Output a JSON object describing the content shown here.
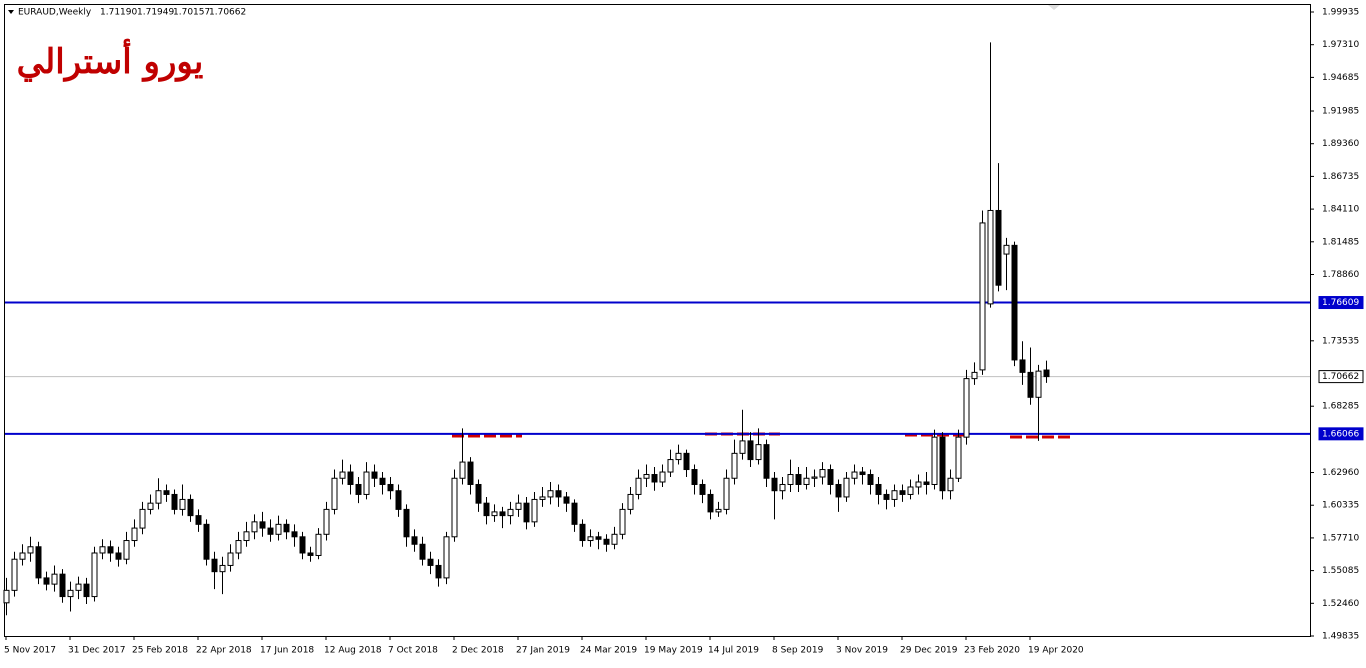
{
  "chart_data": {
    "type": "candlestick",
    "symbol": "EURAUD,Weekly",
    "header_values": [
      "1.71190",
      "1.71949",
      "1.70157",
      "1.70662"
    ],
    "annotation": "يورو أسترالي",
    "categories": [
      "5 Nov 2017",
      null,
      null,
      null,
      null,
      null,
      null,
      null,
      "31 Dec 2017",
      null,
      null,
      null,
      null,
      null,
      null,
      null,
      "25 Feb 2018",
      null,
      null,
      null,
      null,
      null,
      null,
      null,
      "22 Apr 2018",
      null,
      null,
      null,
      null,
      null,
      null,
      null,
      "17 Jun 2018",
      null,
      null,
      null,
      null,
      null,
      null,
      null,
      "12 Aug 2018",
      null,
      null,
      null,
      null,
      null,
      null,
      null,
      "7 Oct 2018",
      null,
      null,
      null,
      null,
      null,
      null,
      null,
      "2 Dec 2018",
      null,
      null,
      null,
      null,
      null,
      null,
      null,
      "27 Jan 2019",
      null,
      null,
      null,
      null,
      null,
      null,
      null,
      "24 Mar 2019",
      null,
      null,
      null,
      null,
      null,
      null,
      null,
      "19 May 2019",
      null,
      null,
      null,
      null,
      null,
      null,
      null,
      "14 Jul 2019",
      null,
      null,
      null,
      null,
      null,
      null,
      null,
      "8 Sep 2019",
      null,
      null,
      null,
      null,
      null,
      null,
      null,
      "3 Nov 2019",
      null,
      null,
      null,
      null,
      null,
      null,
      null,
      "29 Dec 2019",
      null,
      null,
      null,
      null,
      null,
      null,
      null,
      "23 Feb 2020",
      null,
      null,
      null,
      null,
      null,
      null,
      null,
      "19 Apr 2020",
      null,
      null
    ],
    "candles": [
      [
        1.525,
        1.545,
        1.515,
        1.535
      ],
      [
        1.535,
        1.566,
        1.53,
        1.56
      ],
      [
        1.56,
        1.572,
        1.555,
        1.565
      ],
      [
        1.565,
        1.578,
        1.558,
        1.57
      ],
      [
        1.57,
        1.574,
        1.54,
        1.545
      ],
      [
        1.545,
        1.55,
        1.535,
        1.54
      ],
      [
        1.54,
        1.555,
        1.534,
        1.548
      ],
      [
        1.548,
        1.552,
        1.525,
        1.53
      ],
      [
        1.53,
        1.542,
        1.518,
        1.535
      ],
      [
        1.535,
        1.546,
        1.528,
        1.54
      ],
      [
        1.54,
        1.545,
        1.524,
        1.53
      ],
      [
        1.53,
        1.57,
        1.526,
        1.565
      ],
      [
        1.565,
        1.576,
        1.56,
        1.57
      ],
      [
        1.57,
        1.575,
        1.558,
        1.565
      ],
      [
        1.565,
        1.57,
        1.554,
        1.56
      ],
      [
        1.56,
        1.582,
        1.556,
        1.575
      ],
      [
        1.575,
        1.592,
        1.57,
        1.585
      ],
      [
        1.585,
        1.606,
        1.58,
        1.6
      ],
      [
        1.6,
        1.612,
        1.596,
        1.605
      ],
      [
        1.605,
        1.625,
        1.6,
        1.615
      ],
      [
        1.615,
        1.62,
        1.606,
        1.612
      ],
      [
        1.612,
        1.616,
        1.596,
        1.6
      ],
      [
        1.6,
        1.62,
        1.595,
        1.608
      ],
      [
        1.608,
        1.612,
        1.59,
        1.595
      ],
      [
        1.595,
        1.6,
        1.582,
        1.588
      ],
      [
        1.588,
        1.592,
        1.555,
        1.56
      ],
      [
        1.56,
        1.566,
        1.536,
        1.55
      ],
      [
        1.55,
        1.562,
        1.532,
        1.555
      ],
      [
        1.555,
        1.572,
        1.55,
        1.565
      ],
      [
        1.565,
        1.582,
        1.56,
        1.575
      ],
      [
        1.575,
        1.59,
        1.57,
        1.582
      ],
      [
        1.582,
        1.596,
        1.576,
        1.59
      ],
      [
        1.59,
        1.598,
        1.578,
        1.585
      ],
      [
        1.585,
        1.592,
        1.574,
        1.58
      ],
      [
        1.58,
        1.595,
        1.575,
        1.588
      ],
      [
        1.588,
        1.592,
        1.576,
        1.582
      ],
      [
        1.582,
        1.588,
        1.57,
        1.578
      ],
      [
        1.578,
        1.582,
        1.56,
        1.565
      ],
      [
        1.565,
        1.57,
        1.558,
        1.563
      ],
      [
        1.563,
        1.585,
        1.56,
        1.58
      ],
      [
        1.58,
        1.606,
        1.575,
        1.6
      ],
      [
        1.6,
        1.632,
        1.596,
        1.625
      ],
      [
        1.625,
        1.64,
        1.62,
        1.63
      ],
      [
        1.63,
        1.636,
        1.612,
        1.62
      ],
      [
        1.62,
        1.626,
        1.605,
        1.612
      ],
      [
        1.612,
        1.638,
        1.608,
        1.63
      ],
      [
        1.63,
        1.636,
        1.618,
        1.625
      ],
      [
        1.625,
        1.63,
        1.612,
        1.62
      ],
      [
        1.62,
        1.626,
        1.608,
        1.615
      ],
      [
        1.615,
        1.62,
        1.594,
        1.6
      ],
      [
        1.6,
        1.604,
        1.57,
        1.578
      ],
      [
        1.578,
        1.584,
        1.566,
        1.572
      ],
      [
        1.572,
        1.578,
        1.555,
        1.56
      ],
      [
        1.56,
        1.566,
        1.548,
        1.555
      ],
      [
        1.555,
        1.56,
        1.538,
        1.545
      ],
      [
        1.545,
        1.582,
        1.54,
        1.578
      ],
      [
        1.578,
        1.632,
        1.574,
        1.625
      ],
      [
        1.625,
        1.665,
        1.62,
        1.638
      ],
      [
        1.638,
        1.642,
        1.612,
        1.62
      ],
      [
        1.62,
        1.624,
        1.598,
        1.605
      ],
      [
        1.605,
        1.61,
        1.588,
        1.595
      ],
      [
        1.595,
        1.604,
        1.59,
        1.598
      ],
      [
        1.598,
        1.602,
        1.585,
        1.595
      ],
      [
        1.595,
        1.606,
        1.588,
        1.6
      ],
      [
        1.6,
        1.612,
        1.594,
        1.605
      ],
      [
        1.605,
        1.61,
        1.584,
        1.59
      ],
      [
        1.59,
        1.614,
        1.586,
        1.608
      ],
      [
        1.608,
        1.618,
        1.602,
        1.61
      ],
      [
        1.61,
        1.622,
        1.604,
        1.615
      ],
      [
        1.615,
        1.62,
        1.602,
        1.61
      ],
      [
        1.61,
        1.614,
        1.598,
        1.605
      ],
      [
        1.605,
        1.608,
        1.582,
        1.588
      ],
      [
        1.588,
        1.592,
        1.57,
        1.575
      ],
      [
        1.575,
        1.584,
        1.57,
        1.578
      ],
      [
        1.578,
        1.582,
        1.568,
        1.576
      ],
      [
        1.576,
        1.58,
        1.566,
        1.572
      ],
      [
        1.572,
        1.586,
        1.568,
        1.58
      ],
      [
        1.58,
        1.605,
        1.576,
        1.6
      ],
      [
        1.6,
        1.618,
        1.596,
        1.612
      ],
      [
        1.612,
        1.632,
        1.608,
        1.625
      ],
      [
        1.625,
        1.636,
        1.618,
        1.628
      ],
      [
        1.628,
        1.634,
        1.615,
        1.622
      ],
      [
        1.622,
        1.636,
        1.618,
        1.63
      ],
      [
        1.63,
        1.648,
        1.626,
        1.64
      ],
      [
        1.64,
        1.652,
        1.636,
        1.645
      ],
      [
        1.645,
        1.648,
        1.626,
        1.632
      ],
      [
        1.632,
        1.636,
        1.612,
        1.62
      ],
      [
        1.62,
        1.624,
        1.605,
        1.612
      ],
      [
        1.612,
        1.616,
        1.592,
        1.598
      ],
      [
        1.598,
        1.606,
        1.594,
        1.6
      ],
      [
        1.6,
        1.632,
        1.596,
        1.625
      ],
      [
        1.625,
        1.656,
        1.62,
        1.645
      ],
      [
        1.645,
        1.68,
        1.64,
        1.655
      ],
      [
        1.655,
        1.662,
        1.634,
        1.64
      ],
      [
        1.64,
        1.665,
        1.636,
        1.652
      ],
      [
        1.652,
        1.656,
        1.618,
        1.625
      ],
      [
        1.625,
        1.63,
        1.592,
        1.615
      ],
      [
        1.615,
        1.626,
        1.608,
        1.62
      ],
      [
        1.62,
        1.64,
        1.614,
        1.628
      ],
      [
        1.628,
        1.634,
        1.614,
        1.62
      ],
      [
        1.62,
        1.634,
        1.616,
        1.625
      ],
      [
        1.625,
        1.632,
        1.618,
        1.626
      ],
      [
        1.626,
        1.638,
        1.62,
        1.632
      ],
      [
        1.632,
        1.636,
        1.612,
        1.62
      ],
      [
        1.62,
        1.624,
        1.598,
        1.61
      ],
      [
        1.61,
        1.63,
        1.606,
        1.625
      ],
      [
        1.625,
        1.636,
        1.62,
        1.63
      ],
      [
        1.63,
        1.634,
        1.62,
        1.628
      ],
      [
        1.628,
        1.632,
        1.612,
        1.62
      ],
      [
        1.62,
        1.626,
        1.604,
        1.612
      ],
      [
        1.612,
        1.616,
        1.6,
        1.608
      ],
      [
        1.608,
        1.62,
        1.602,
        1.615
      ],
      [
        1.615,
        1.62,
        1.606,
        1.612
      ],
      [
        1.612,
        1.624,
        1.608,
        1.618
      ],
      [
        1.618,
        1.628,
        1.612,
        1.622
      ],
      [
        1.622,
        1.63,
        1.612,
        1.62
      ],
      [
        1.62,
        1.664,
        1.616,
        1.658
      ],
      [
        1.658,
        1.662,
        1.608,
        1.615
      ],
      [
        1.615,
        1.632,
        1.608,
        1.625
      ],
      [
        1.625,
        1.664,
        1.622,
        1.658
      ],
      [
        1.658,
        1.712,
        1.652,
        1.705
      ],
      [
        1.705,
        1.718,
        1.7,
        1.71
      ],
      [
        1.712,
        1.84,
        1.708,
        1.83
      ],
      [
        1.765,
        1.975,
        1.762,
        1.84
      ],
      [
        1.84,
        1.878,
        1.775,
        1.78
      ],
      [
        1.805,
        1.818,
        1.776,
        1.812
      ],
      [
        1.812,
        1.815,
        1.715,
        1.72
      ],
      [
        1.72,
        1.735,
        1.7,
        1.71
      ],
      [
        1.71,
        1.73,
        1.684,
        1.69
      ],
      [
        1.69,
        1.716,
        1.655,
        1.711
      ],
      [
        1.7119,
        1.71949,
        1.70157,
        1.70662
      ]
    ],
    "ylim": [
      1.49835,
      1.99935
    ],
    "yticks": [
      1.99935,
      {
        "value": 1.9731,
        "label": "1.97310"
      },
      1.94685,
      1.91985,
      {
        "value": 1.8936,
        "label": "1.89360"
      },
      1.86735,
      {
        "value": 1.8411,
        "label": "1.84110"
      },
      1.81485,
      {
        "value": 1.7886,
        "label": "1.78860"
      },
      1.73535,
      1.68285,
      {
        "value": 1.6296,
        "label": "1.62960"
      },
      1.60335,
      {
        "value": 1.5771,
        "label": "1.57710"
      },
      1.55085,
      {
        "value": 1.5246,
        "label": "1.52460"
      },
      1.49835
    ],
    "hlines": [
      {
        "value": 1.76609,
        "color": "#0000cc"
      },
      {
        "value": 1.66066,
        "color": "#0000cc"
      },
      {
        "value": 1.70662,
        "color": "#c0c0c0"
      }
    ],
    "up_color": "#ffffff",
    "down_color": "#000000"
  }
}
